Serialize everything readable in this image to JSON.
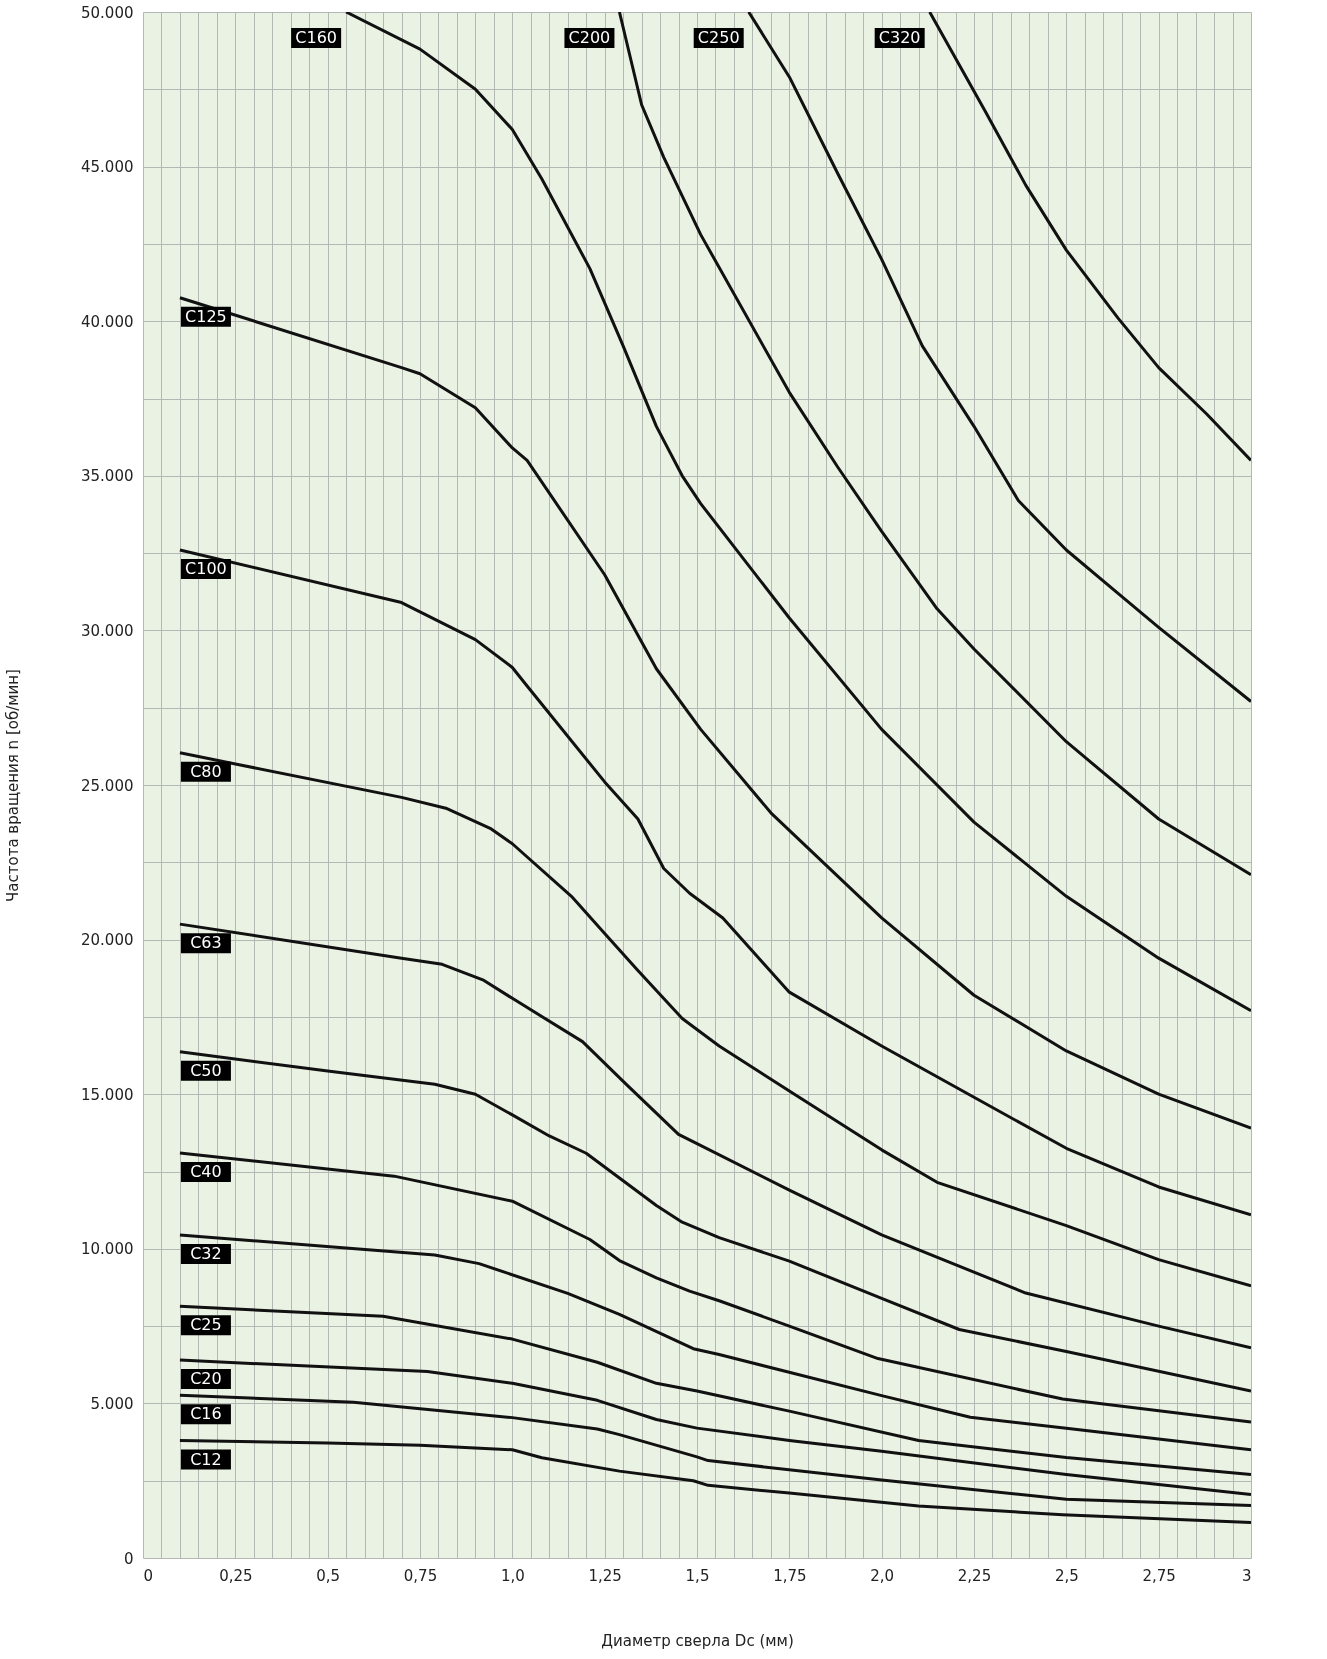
{
  "chart_data": {
    "type": "line",
    "xlabel": "Диаметр сверла Dc (мм)",
    "ylabel": "Частота вращения n [об/мин]",
    "grid": true,
    "line_style": "solid",
    "xlim": [
      0,
      3
    ],
    "ylim": [
      0,
      50000
    ],
    "xticks": [
      0,
      {
        "value": 0.05,
        "label": null
      },
      {
        "value": 0.1,
        "label": null
      },
      {
        "value": 0.15,
        "label": null
      },
      {
        "value": 0.2,
        "label": null
      },
      {
        "value": 0.25,
        "label": "0,25"
      },
      {
        "value": 0.3,
        "label": null
      },
      {
        "value": 0.35,
        "label": null
      },
      {
        "value": 0.4,
        "label": null
      },
      {
        "value": 0.45,
        "label": null
      },
      {
        "value": 0.5,
        "label": "0,5"
      },
      {
        "value": 0.55,
        "label": null
      },
      {
        "value": 0.6,
        "label": null
      },
      {
        "value": 0.65,
        "label": null
      },
      {
        "value": 0.7,
        "label": null
      },
      {
        "value": 0.75,
        "label": "0,75"
      },
      {
        "value": 0.8,
        "label": null
      },
      {
        "value": 0.85,
        "label": null
      },
      {
        "value": 0.9,
        "label": null
      },
      {
        "value": 0.95,
        "label": null
      },
      {
        "value": 1.0,
        "label": "1,0"
      },
      {
        "value": 1.05,
        "label": null
      },
      {
        "value": 1.1,
        "label": null
      },
      {
        "value": 1.15,
        "label": null
      },
      {
        "value": 1.2,
        "label": null
      },
      {
        "value": 1.25,
        "label": "1,25"
      },
      {
        "value": 1.3,
        "label": null
      },
      {
        "value": 1.35,
        "label": null
      },
      {
        "value": 1.4,
        "label": null
      },
      {
        "value": 1.45,
        "label": null
      },
      {
        "value": 1.5,
        "label": "1,5"
      },
      {
        "value": 1.55,
        "label": null
      },
      {
        "value": 1.6,
        "label": null
      },
      {
        "value": 1.65,
        "label": null
      },
      {
        "value": 1.7,
        "label": null
      },
      {
        "value": 1.75,
        "label": "1,75"
      },
      {
        "value": 1.8,
        "label": null
      },
      {
        "value": 1.85,
        "label": null
      },
      {
        "value": 1.9,
        "label": null
      },
      {
        "value": 1.95,
        "label": null
      },
      {
        "value": 2.0,
        "label": "2,0"
      },
      {
        "value": 2.05,
        "label": null
      },
      {
        "value": 2.1,
        "label": null
      },
      {
        "value": 2.15,
        "label": null
      },
      {
        "value": 2.2,
        "label": null
      },
      {
        "value": 2.25,
        "label": "2,25"
      },
      {
        "value": 2.3,
        "label": null
      },
      {
        "value": 2.35,
        "label": null
      },
      {
        "value": 2.4,
        "label": null
      },
      {
        "value": 2.45,
        "label": null
      },
      {
        "value": 2.5,
        "label": "2,5"
      },
      {
        "value": 2.55,
        "label": null
      },
      {
        "value": 2.6,
        "label": null
      },
      {
        "value": 2.65,
        "label": null
      },
      {
        "value": 2.7,
        "label": null
      },
      {
        "value": 2.75,
        "label": "2,75"
      },
      {
        "value": 2.8,
        "label": null
      },
      {
        "value": 2.85,
        "label": null
      },
      {
        "value": 2.9,
        "label": null
      },
      {
        "value": 2.95,
        "label": null
      },
      3
    ],
    "yticks": [
      0,
      {
        "value": 2500,
        "label": null
      },
      {
        "value": 5000,
        "label": "5.000"
      },
      {
        "value": 7500,
        "label": null
      },
      {
        "value": 10000,
        "label": "10.000"
      },
      {
        "value": 12500,
        "label": null
      },
      {
        "value": 15000,
        "label": "15.000"
      },
      {
        "value": 17500,
        "label": null
      },
      {
        "value": 20000,
        "label": "20.000"
      },
      {
        "value": 22500,
        "label": null
      },
      {
        "value": 25000,
        "label": "25.000"
      },
      {
        "value": 27500,
        "label": null
      },
      {
        "value": 30000,
        "label": "30.000"
      },
      {
        "value": 32500,
        "label": null
      },
      {
        "value": 35000,
        "label": "35.000"
      },
      {
        "value": 37500,
        "label": null
      },
      {
        "value": 40000,
        "label": "40.000"
      },
      {
        "value": 42500,
        "label": null
      },
      {
        "value": 45000,
        "label": "45.000"
      },
      {
        "value": 47500,
        "label": null
      },
      {
        "value": 50000,
        "label": "50.000"
      }
    ],
    "series": [
      {
        "name": "C12",
        "color": "#111111",
        "x": [
          0.1,
          0.5,
          0.75,
          1.0,
          1.08,
          1.29,
          1.49,
          1.53,
          1.75,
          2.1,
          2.49,
          3.0
        ],
        "values": [
          3800,
          3720,
          3650,
          3500,
          3240,
          2810,
          2500,
          2350,
          2100,
          1680,
          1400,
          1150
        ]
      },
      {
        "name": "C16",
        "color": "#111111",
        "x": [
          0.1,
          0.57,
          1.0,
          1.23,
          1.29,
          1.5,
          1.53,
          2.0,
          2.5,
          3.0
        ],
        "values": [
          5260,
          5040,
          4540,
          4170,
          3990,
          3270,
          3150,
          2520,
          1900,
          1700
        ]
      },
      {
        "name": "C20",
        "color": "#111111",
        "x": [
          0.1,
          0.77,
          1.0,
          1.23,
          1.39,
          1.5,
          1.75,
          2.0,
          2.5,
          3.0
        ],
        "values": [
          6400,
          6030,
          5650,
          5100,
          4480,
          4200,
          3800,
          3450,
          2700,
          2050
        ]
      },
      {
        "name": "C25",
        "color": "#111111",
        "x": [
          0.1,
          0.65,
          1.0,
          1.23,
          1.39,
          1.5,
          1.75,
          2.1,
          2.5,
          3.0
        ],
        "values": [
          8140,
          7820,
          7080,
          6330,
          5650,
          5400,
          4750,
          3800,
          3250,
          2700
        ]
      },
      {
        "name": "C32",
        "color": "#111111",
        "x": [
          0.1,
          0.79,
          0.91,
          1.15,
          1.29,
          1.49,
          1.56,
          2.0,
          2.24,
          2.5,
          3.0
        ],
        "values": [
          10450,
          9800,
          9520,
          8560,
          7880,
          6770,
          6580,
          5250,
          4550,
          4200,
          3500
        ]
      },
      {
        "name": "C40",
        "color": "#111111",
        "x": [
          0.1,
          0.68,
          1.0,
          1.21,
          1.29,
          1.39,
          1.48,
          1.56,
          1.75,
          1.99,
          2.49,
          3.0
        ],
        "values": [
          13100,
          12350,
          11540,
          10300,
          9620,
          9060,
          8630,
          8320,
          7500,
          6450,
          5140,
          4400
        ]
      },
      {
        "name": "C50",
        "color": "#111111",
        "x": [
          0.1,
          0.5,
          0.79,
          0.9,
          1.0,
          1.1,
          1.2,
          1.3,
          1.39,
          1.46,
          1.56,
          1.75,
          2.0,
          2.21,
          2.5,
          3.0
        ],
        "values": [
          16370,
          15750,
          15320,
          15000,
          14330,
          13650,
          13090,
          12200,
          11400,
          10860,
          10360,
          9600,
          8400,
          7390,
          6680,
          5400
        ]
      },
      {
        "name": "C63",
        "color": "#111111",
        "x": [
          0.1,
          0.7,
          0.81,
          0.92,
          1.0,
          1.19,
          1.31,
          1.45,
          1.5,
          1.75,
          2.0,
          2.39,
          2.75,
          3.0
        ],
        "values": [
          20500,
          19400,
          19200,
          18700,
          18100,
          16700,
          15300,
          13700,
          13400,
          11900,
          10450,
          8570,
          7500,
          6800
        ]
      },
      {
        "name": "C80",
        "color": "#111111",
        "x": [
          0.1,
          0.7,
          0.82,
          0.94,
          1.0,
          1.16,
          1.25,
          1.34,
          1.46,
          1.56,
          1.75,
          2.0,
          2.15,
          2.5,
          2.75,
          3.0
        ],
        "values": [
          26040,
          24600,
          24250,
          23600,
          23100,
          21400,
          20200,
          19000,
          17450,
          16560,
          15100,
          13200,
          12150,
          10750,
          9650,
          8800
        ]
      },
      {
        "name": "C100",
        "color": "#111111",
        "x": [
          0.1,
          0.7,
          0.75,
          0.9,
          1.0,
          1.04,
          1.25,
          1.34,
          1.41,
          1.48,
          1.57,
          1.75,
          2.0,
          2.25,
          2.5,
          2.75,
          3.0
        ],
        "values": [
          32600,
          30900,
          30600,
          29700,
          28800,
          28200,
          25100,
          23900,
          22300,
          21500,
          20700,
          18300,
          16560,
          14900,
          13250,
          12000,
          11100
        ]
      },
      {
        "name": "C125",
        "color": "#111111",
        "x": [
          0.1,
          0.7,
          0.75,
          0.9,
          1.0,
          1.04,
          1.25,
          1.39,
          1.51,
          1.7,
          2.0,
          2.25,
          2.5,
          2.75,
          3.0
        ],
        "values": [
          40760,
          38500,
          38300,
          37200,
          35900,
          35500,
          31800,
          28760,
          26800,
          24100,
          20700,
          18200,
          16400,
          15000,
          13900
        ]
      },
      {
        "name": "C160",
        "color": "#111111",
        "x": [
          0.55,
          0.75,
          0.9,
          1.0,
          1.08,
          1.21,
          1.3,
          1.39,
          1.46,
          1.51,
          1.75,
          2.0,
          2.25,
          2.5,
          2.75,
          3.0
        ],
        "values": [
          50000,
          48800,
          47500,
          46200,
          44600,
          41700,
          39200,
          36600,
          35000,
          34100,
          30400,
          26800,
          23800,
          21400,
          19400,
          17700
        ]
      },
      {
        "name": "C200",
        "color": "#111111",
        "x": [
          1.29,
          1.35,
          1.41,
          1.51,
          1.75,
          1.88,
          2.0,
          2.15,
          2.25,
          2.5,
          2.75,
          3.0
        ],
        "values": [
          50000,
          47000,
          45300,
          42800,
          37700,
          35300,
          33200,
          30700,
          29400,
          26400,
          23900,
          22100
        ]
      },
      {
        "name": "C250",
        "color": "#111111",
        "x": [
          1.64,
          1.75,
          1.88,
          2.0,
          2.11,
          2.25,
          2.37,
          2.5,
          2.64,
          2.75,
          3.0
        ],
        "values": [
          50000,
          47900,
          44800,
          42000,
          39200,
          36600,
          34200,
          32600,
          31200,
          30100,
          27700
        ]
      },
      {
        "name": "C320",
        "color": "#111111",
        "x": [
          2.13,
          2.28,
          2.39,
          2.5,
          2.64,
          2.75,
          2.88,
          3.0
        ],
        "values": [
          50000,
          46800,
          44400,
          42300,
          40100,
          38500,
          37000,
          35500
        ]
      }
    ]
  }
}
